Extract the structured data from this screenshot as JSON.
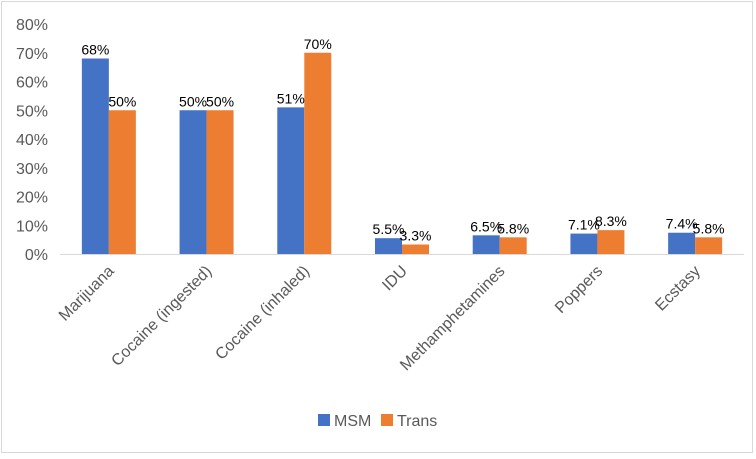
{
  "chart_data": {
    "type": "bar",
    "categories": [
      "Marijuana",
      "Cocaine (ingested)",
      "Cocaine (inhaled)",
      "IDU",
      "Methamphetamines",
      "Poppers",
      "Ecstasy"
    ],
    "series": [
      {
        "name": "MSM",
        "color": "#4472c4",
        "values": [
          68,
          50,
          51,
          5.5,
          6.5,
          7.1,
          7.4
        ],
        "labels": [
          "68%",
          "50%",
          "51%",
          "5.5%",
          "6.5%",
          "7.1%",
          "7.4%"
        ]
      },
      {
        "name": "Trans",
        "color": "#ed7d31",
        "values": [
          50,
          50,
          70,
          3.3,
          5.8,
          8.3,
          5.8
        ],
        "labels": [
          "50%",
          "50%",
          "70%",
          "3.3%",
          "5.8%",
          "8.3%",
          "5.8%"
        ]
      }
    ],
    "yticks": [
      "0%",
      "10%",
      "20%",
      "30%",
      "40%",
      "50%",
      "60%",
      "70%",
      "80%"
    ],
    "ylim": [
      0,
      80
    ],
    "grid": false,
    "legend_position": "bottom"
  }
}
